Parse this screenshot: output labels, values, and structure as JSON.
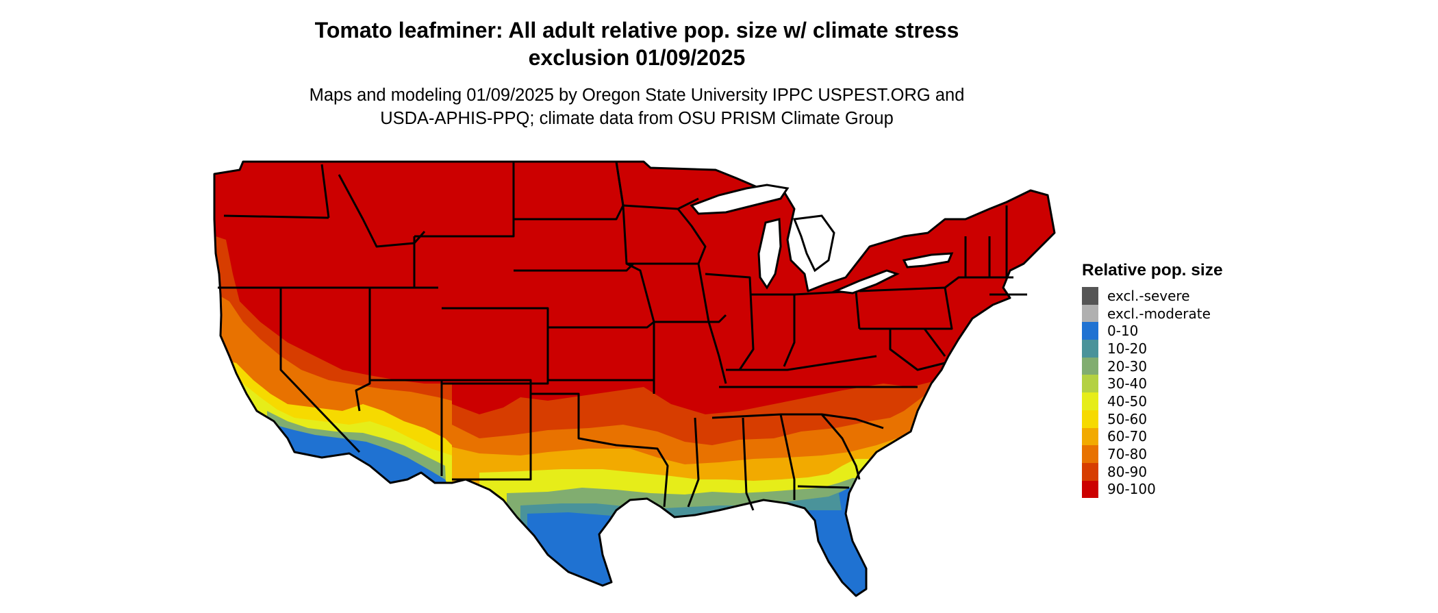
{
  "title": "Tomato leafminer: All adult relative pop. size w/ climate stress exclusion 01/09/2025",
  "title_lines": [
    "Tomato leafminer: All adult relative pop. size w/ climate stress",
    "exclusion 01/09/2025"
  ],
  "subtitle_lines": [
    "Maps and modeling 01/09/2025 by Oregon State University IPPC USPEST.ORG and",
    "USDA-APHIS-PPQ; climate data from OSU PRISM Climate Group"
  ],
  "map": {
    "region": "Contiguous United States",
    "layer": "relative population size",
    "borders": "state boundaries",
    "zones": [
      {
        "area": "northern and central states",
        "class": "90-100"
      },
      {
        "area": "Southeast and southern Plains",
        "class": "70-90"
      },
      {
        "area": "Gulf coast band",
        "class": "40-60"
      },
      {
        "area": "Texas Gulf coast and Florida peninsula",
        "class": "0-10"
      },
      {
        "area": "southern California and Arizona deserts",
        "class": "0-60"
      }
    ]
  },
  "legend": {
    "title": "Relative pop. size",
    "items": [
      {
        "label": "excl.-severe",
        "color": "#555555"
      },
      {
        "label": "excl.-moderate",
        "color": "#b0b0b0"
      },
      {
        "label": "0-10",
        "color": "#1f72d2"
      },
      {
        "label": "10-20",
        "color": "#4a939a"
      },
      {
        "label": "20-30",
        "color": "#81ad70"
      },
      {
        "label": "30-40",
        "color": "#b4d142"
      },
      {
        "label": "40-50",
        "color": "#e6ed19"
      },
      {
        "label": "50-60",
        "color": "#f6da00"
      },
      {
        "label": "60-70",
        "color": "#f2aa00"
      },
      {
        "label": "70-80",
        "color": "#e87200"
      },
      {
        "label": "80-90",
        "color": "#d73d00"
      },
      {
        "label": "90-100",
        "color": "#cc0000"
      }
    ]
  }
}
